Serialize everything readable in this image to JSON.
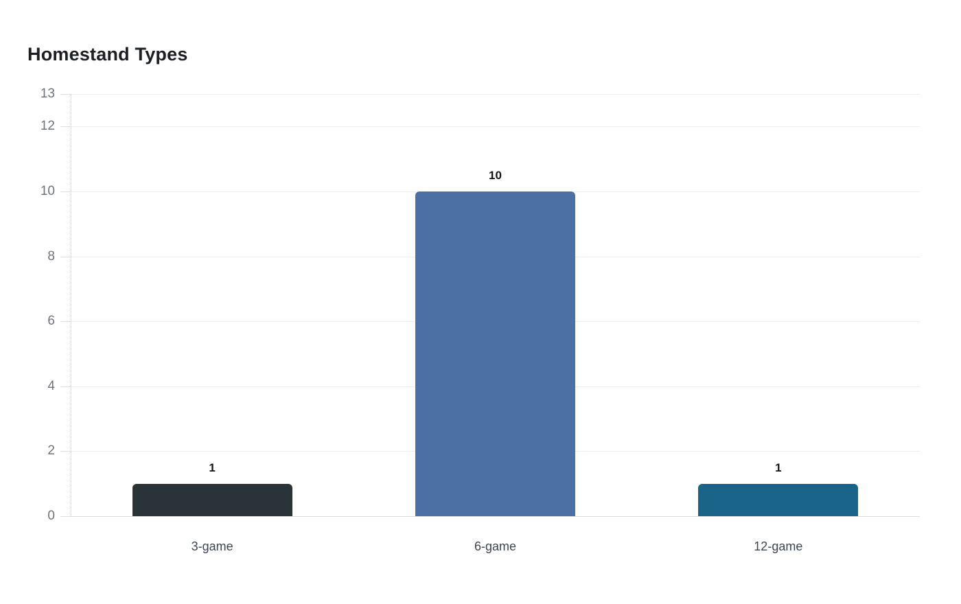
{
  "chart_data": {
    "type": "bar",
    "title": "Homestand Types",
    "categories": [
      "3-game",
      "6-game",
      "12-game"
    ],
    "values": [
      1,
      10,
      1
    ],
    "value_labels": [
      "1",
      "10",
      "1"
    ],
    "bar_colors": [
      "#2a3338",
      "#4c70a4",
      "#1a6489"
    ],
    "xlabel": "",
    "ylabel": "",
    "ylim": [
      0,
      13
    ],
    "yticks": [
      0,
      2,
      4,
      6,
      8,
      10,
      12,
      13
    ],
    "grid": "horizontal",
    "legend": "none",
    "style": {
      "background": "#ffffff",
      "title_color": "#1c2025",
      "gridline_color": "#eeeeee",
      "baseline_color": "#d9dce0",
      "tick_mark_color": "#dddddd",
      "y_tick_label_color": "#6e747c",
      "x_tick_label_color": "#3d4450",
      "value_label_color": "#111417"
    }
  }
}
